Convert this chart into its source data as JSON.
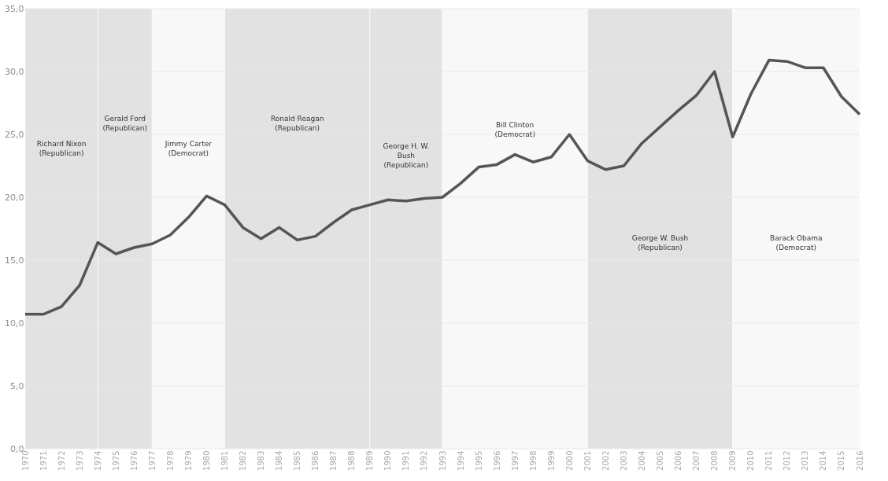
{
  "chart_data": {
    "type": "line",
    "categories": [
      "1970",
      "1971",
      "1972",
      "1973",
      "1974",
      "1975",
      "1976",
      "1977",
      "1978",
      "1979",
      "1980",
      "1981",
      "1982",
      "1983",
      "1984",
      "1985",
      "1986",
      "1987",
      "1988",
      "1989",
      "1990",
      "1991",
      "1992",
      "1993",
      "1994",
      "1995",
      "1996",
      "1997",
      "1998",
      "1999",
      "2000",
      "2001",
      "2002",
      "2003",
      "2004",
      "2005",
      "2006",
      "2007",
      "2008",
      "2009",
      "2010",
      "2011",
      "2012",
      "2013",
      "2014",
      "2015",
      "2016"
    ],
    "series": [
      {
        "color": "#555555",
        "values": [
          10.7,
          10.7,
          11.3,
          13.0,
          16.4,
          15.5,
          16.0,
          16.3,
          17.0,
          18.4,
          20.1,
          19.4,
          17.6,
          16.7,
          17.6,
          16.6,
          16.9,
          18.0,
          19.0,
          19.4,
          19.8,
          19.7,
          19.9,
          20.0,
          21.1,
          22.4,
          22.6,
          23.4,
          22.8,
          23.2,
          25.0,
          22.9,
          22.2,
          22.5,
          24.3,
          25.6,
          26.9,
          28.1,
          30.0,
          24.8,
          28.2,
          30.9,
          30.8,
          30.3,
          30.3,
          28.0,
          26.6
        ]
      }
    ],
    "ylim": [
      0,
      35
    ],
    "yticks": [
      {
        "value": 0,
        "label": "0,0"
      },
      {
        "value": 5,
        "label": "5,0"
      },
      {
        "value": 10,
        "label": "10,0"
      },
      {
        "value": 15,
        "label": "15,0"
      },
      {
        "value": 20,
        "label": "20,0"
      },
      {
        "value": 25,
        "label": "25,0"
      },
      {
        "value": 30,
        "label": "30,0"
      },
      {
        "value": 35,
        "label": "35,0"
      }
    ],
    "grid": "y",
    "line_style": "solid",
    "marker": "none",
    "bands": [
      {
        "axis": "x",
        "from": "1970",
        "to": "1974",
        "label": "Richard Nixon\n(Republican)",
        "color": "#e2e2e2"
      },
      {
        "axis": "x",
        "from": "1974",
        "to": "1977",
        "label": "Gerald Ford\n(Republican)",
        "color": "#e2e2e2"
      },
      {
        "axis": "x",
        "from": "1977",
        "to": "1981",
        "label": "Jimmy Carter\n(Democrat)",
        "color": "#f8f8f8"
      },
      {
        "axis": "x",
        "from": "1981",
        "to": "1989",
        "label": "Ronald Reagan\n(Republican)",
        "color": "#e2e2e2"
      },
      {
        "axis": "x",
        "from": "1989",
        "to": "1993",
        "label": "George H. W.\nBush\n(Republican)",
        "color": "#e2e2e2"
      },
      {
        "axis": "x",
        "from": "1993",
        "to": "2001",
        "label": "Bill Clinton\n(Democrat)",
        "color": "#f8f8f8"
      },
      {
        "axis": "x",
        "from": "2001",
        "to": "2009",
        "label": "George W. Bush\n(Republican)",
        "color": "#e2e2e2"
      },
      {
        "axis": "x",
        "from": "2009",
        "to": "2016",
        "label": "Barack Obama\n(Democrat)",
        "color": "#f8f8f8"
      }
    ]
  }
}
